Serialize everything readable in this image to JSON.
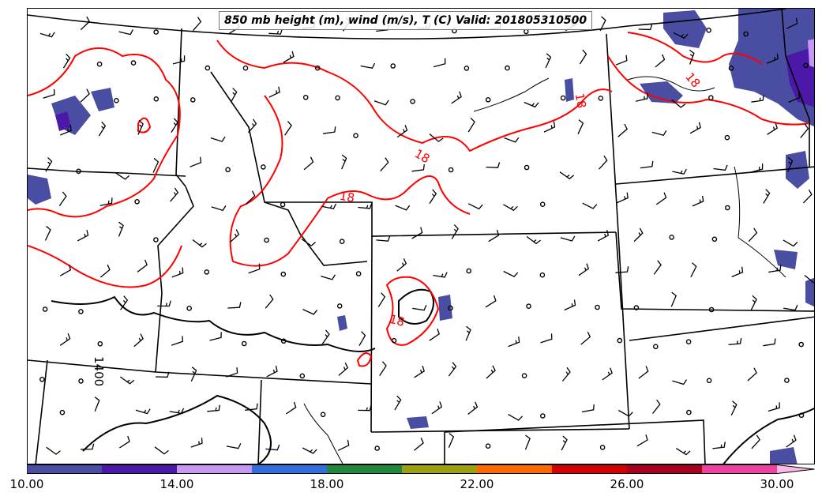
{
  "title": "850 mb height (m), wind (m/s), T (C) Valid: 201805310500",
  "contour_labels": {
    "temp": [
      "18",
      "18",
      "18",
      "18",
      "18"
    ],
    "height": [
      "1400"
    ]
  },
  "colorbar": {
    "min": 10,
    "max": 31,
    "tick_labels": [
      "10.00",
      "14.00",
      "18.00",
      "22.00",
      "26.00",
      "30.00"
    ],
    "tick_values": [
      10,
      14,
      18,
      22,
      26,
      30
    ],
    "colors": [
      "#4a4ea2",
      "#4b18a8",
      "#c896f5",
      "#2f6fe0",
      "#1f8a3e",
      "#9aa010",
      "#ff6a00",
      "#d40000",
      "#a80020",
      "#f040a0",
      "#f8b8e8"
    ]
  },
  "legend_colors": {
    "temperature_contour": "#ff0000",
    "height_contour": "#000000",
    "wind_barb": "#000000"
  }
}
